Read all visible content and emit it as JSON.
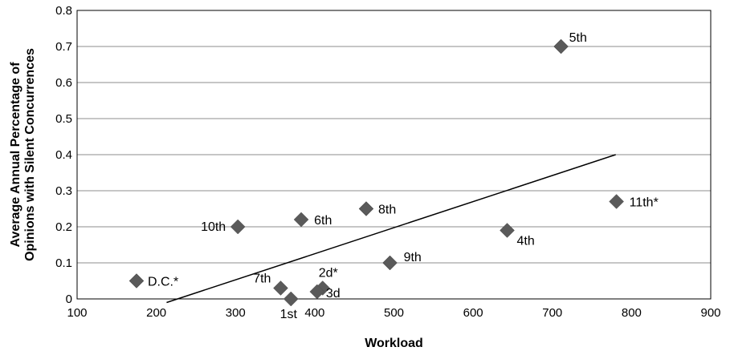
{
  "chart_data": {
    "type": "scatter",
    "xlabel": "Workload",
    "ylabel_line1": "Average Annual Percentage of",
    "ylabel_line2": "Opinions with Silent Concurrences",
    "xlim": [
      100,
      900
    ],
    "ylim": [
      0,
      0.8
    ],
    "x_ticks": [
      "100",
      "200",
      "300",
      "400",
      "500",
      "600",
      "700",
      "800",
      "900"
    ],
    "y_ticks": [
      "0",
      "0.1",
      "0.2",
      "0.3",
      "0.4",
      "0.5",
      "0.6",
      "0.7",
      "0.8"
    ],
    "grid": true,
    "marker": "diamond",
    "marker_color": "#5a5a5a",
    "points": [
      {
        "label": "D.C.*",
        "x": 175,
        "y": 0.05
      },
      {
        "label": "10th",
        "x": 303,
        "y": 0.2
      },
      {
        "label": "7th",
        "x": 357,
        "y": 0.03
      },
      {
        "label": "1st",
        "x": 370,
        "y": 0.0
      },
      {
        "label": "6th",
        "x": 383,
        "y": 0.22
      },
      {
        "label": "2d*",
        "x": 410,
        "y": 0.03
      },
      {
        "label": "3d",
        "x": 403,
        "y": 0.02
      },
      {
        "label": "8th",
        "x": 465,
        "y": 0.25
      },
      {
        "label": "9th",
        "x": 495,
        "y": 0.1
      },
      {
        "label": "4th",
        "x": 643,
        "y": 0.19
      },
      {
        "label": "5th",
        "x": 711,
        "y": 0.7
      },
      {
        "label": "11th*",
        "x": 781,
        "y": 0.27
      }
    ],
    "trendline": {
      "x": [
        213,
        780
      ],
      "y": [
        -0.01,
        0.4
      ]
    }
  }
}
